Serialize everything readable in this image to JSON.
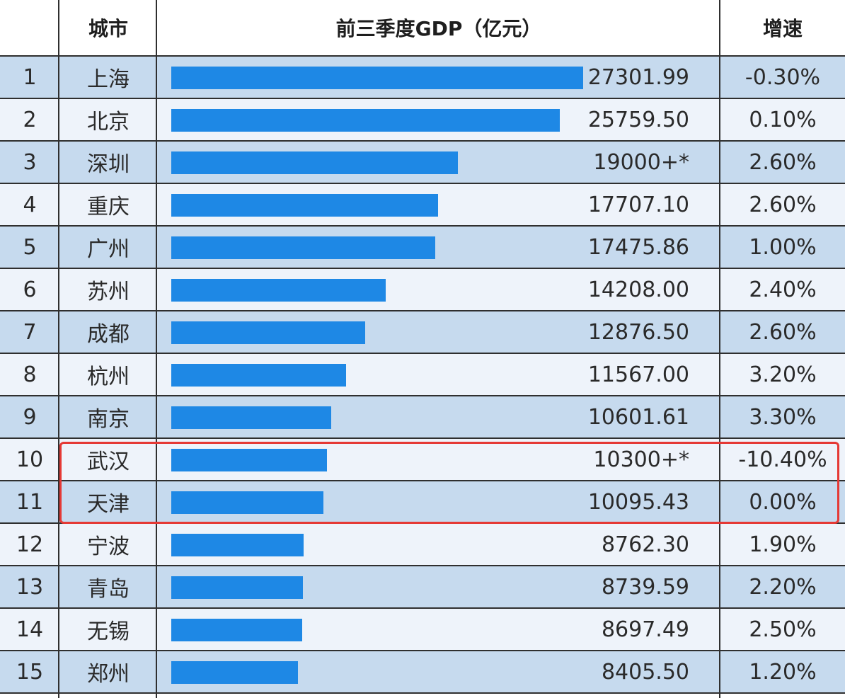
{
  "header": {
    "rank": "",
    "city": "城市",
    "gdp": "前三季度GDP（亿元）",
    "rate": "增速"
  },
  "colors": {
    "bar": "#1e88e5",
    "row_odd": "#c6daee",
    "row_even": "#eef3fa",
    "highlight_border": "#e53935"
  },
  "highlight": {
    "ranks": [
      "10",
      "11"
    ]
  },
  "chart_data": {
    "type": "bar",
    "orientation": "horizontal",
    "categories": [
      "上海",
      "北京",
      "深圳",
      "重庆",
      "广州",
      "苏州",
      "成都",
      "杭州",
      "南京",
      "武汉",
      "天津",
      "宁波",
      "青岛",
      "无锡",
      "郑州"
    ],
    "values": [
      27301.99,
      25759.5,
      19000,
      17707.1,
      17475.86,
      14208.0,
      12876.5,
      11567.0,
      10601.61,
      10300,
      10095.43,
      8762.3,
      8739.59,
      8697.49,
      8405.5
    ],
    "rows": [
      {
        "rank": "1",
        "city": "上海",
        "gdp": 27301.99,
        "gdp_label": "27301.99",
        "rate": "-0.30%"
      },
      {
        "rank": "2",
        "city": "北京",
        "gdp": 25759.5,
        "gdp_label": "25759.50",
        "rate": "0.10%"
      },
      {
        "rank": "3",
        "city": "深圳",
        "gdp": 19000,
        "gdp_label": "19000+*",
        "rate": "2.60%"
      },
      {
        "rank": "4",
        "city": "重庆",
        "gdp": 17707.1,
        "gdp_label": "17707.10",
        "rate": "2.60%"
      },
      {
        "rank": "5",
        "city": "广州",
        "gdp": 17475.86,
        "gdp_label": "17475.86",
        "rate": "1.00%"
      },
      {
        "rank": "6",
        "city": "苏州",
        "gdp": 14208.0,
        "gdp_label": "14208.00",
        "rate": "2.40%"
      },
      {
        "rank": "7",
        "city": "成都",
        "gdp": 12876.5,
        "gdp_label": "12876.50",
        "rate": "2.60%"
      },
      {
        "rank": "8",
        "city": "杭州",
        "gdp": 11567.0,
        "gdp_label": "11567.00",
        "rate": "3.20%"
      },
      {
        "rank": "9",
        "city": "南京",
        "gdp": 10601.61,
        "gdp_label": "10601.61",
        "rate": "3.30%"
      },
      {
        "rank": "10",
        "city": "武汉",
        "gdp": 10300,
        "gdp_label": "10300+*",
        "rate": "-10.40%"
      },
      {
        "rank": "11",
        "city": "天津",
        "gdp": 10095.43,
        "gdp_label": "10095.43",
        "rate": "0.00%"
      },
      {
        "rank": "12",
        "city": "宁波",
        "gdp": 8762.3,
        "gdp_label": "8762.30",
        "rate": "1.90%"
      },
      {
        "rank": "13",
        "city": "青岛",
        "gdp": 8739.59,
        "gdp_label": "8739.59",
        "rate": "2.20%"
      },
      {
        "rank": "14",
        "city": "无锡",
        "gdp": 8697.49,
        "gdp_label": "8697.49",
        "rate": "2.50%"
      },
      {
        "rank": "15",
        "city": "郑州",
        "gdp": 8405.5,
        "gdp_label": "8405.50",
        "rate": "1.20%"
      }
    ],
    "title": "",
    "xlabel": "",
    "ylabel": "",
    "xlim": [
      0,
      27301.99
    ],
    "grid": false
  }
}
